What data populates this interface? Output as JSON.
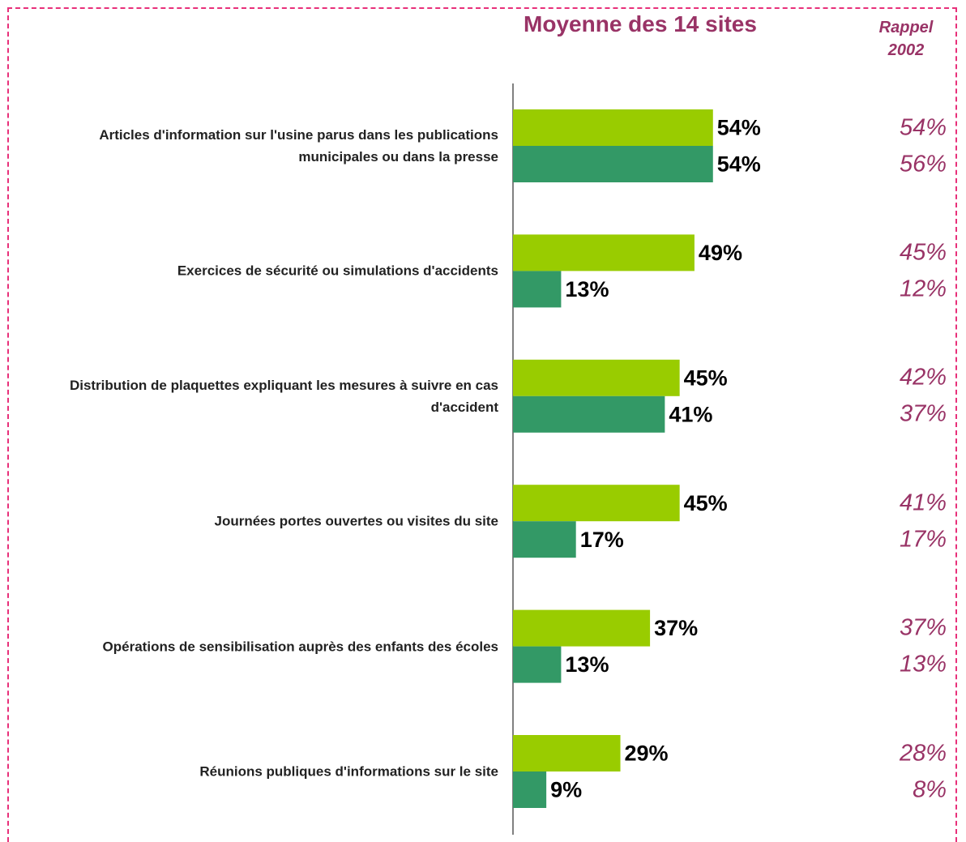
{
  "chart_data": {
    "type": "bar",
    "title": "Moyenne des 14 sites",
    "rappel_title": "Rappel 2002",
    "categories": [
      "Articles d'information sur l'usine parus dans les publications municipales ou dans la presse",
      "Exercices de sécurité ou simulations d'accidents",
      "Distribution de plaquettes expliquant les mesures à suivre en cas d'accident",
      "Journées portes ouvertes ou visites du site",
      "Opérations de sensibilisation auprès des enfants des écoles",
      "Réunions publiques d'informations sur le site"
    ],
    "series": [
      {
        "color": "#99cc00",
        "values": [
          54,
          49,
          45,
          45,
          37,
          29
        ],
        "value_labels": [
          "54%",
          "49%",
          "45%",
          "45%",
          "37%",
          "29%"
        ],
        "rappel_labels": [
          "54%",
          "45%",
          "42%",
          "41%",
          "37%",
          "28%"
        ]
      },
      {
        "color": "#339966",
        "values": [
          54,
          13,
          41,
          17,
          13,
          9
        ],
        "value_labels": [
          "54%",
          "13%",
          "41%",
          "17%",
          "13%",
          "9%"
        ],
        "rappel_labels": [
          "56%",
          "12%",
          "37%",
          "17%",
          "13%",
          "8%"
        ]
      }
    ],
    "xlim": [
      0,
      100
    ]
  }
}
